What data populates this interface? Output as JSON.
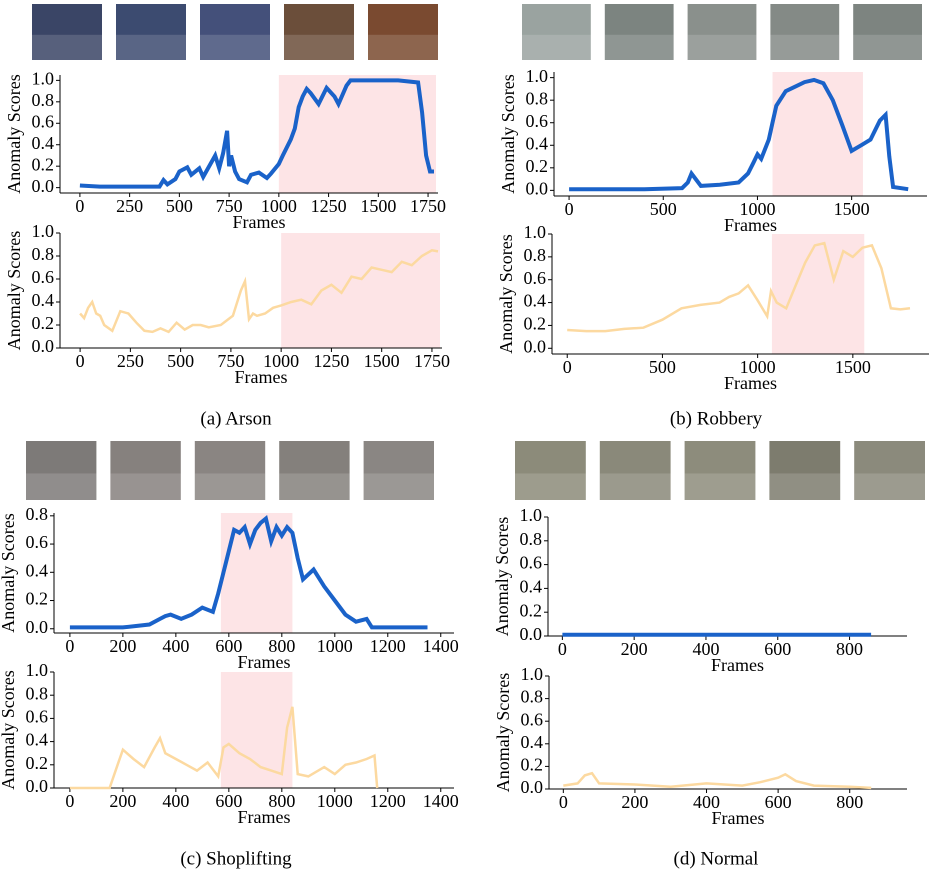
{
  "captions": [
    "(a) Arson",
    "(b) Robbery",
    "(c) Shoplifting",
    "(d) Normal"
  ],
  "chart_data": [
    {
      "type": "line",
      "xlabel": "Frames",
      "ylabel": "Anomaly Scores",
      "color": "#1a62c9",
      "line_width": 4,
      "x": [
        0,
        100,
        200,
        300,
        400,
        420,
        440,
        480,
        500,
        540,
        560,
        600,
        620,
        680,
        700,
        720,
        740,
        750,
        760,
        780,
        800,
        840,
        860,
        900,
        940,
        960,
        1000,
        1020,
        1060,
        1080,
        1100,
        1120,
        1140,
        1160,
        1200,
        1240,
        1280,
        1300,
        1340,
        1360,
        1400,
        1500,
        1600,
        1700,
        1720,
        1740,
        1760,
        1780
      ],
      "values": [
        0.02,
        0.01,
        0.01,
        0.01,
        0.01,
        0.07,
        0.03,
        0.08,
        0.15,
        0.19,
        0.12,
        0.18,
        0.1,
        0.3,
        0.18,
        0.32,
        0.53,
        0.2,
        0.3,
        0.15,
        0.08,
        0.05,
        0.12,
        0.14,
        0.09,
        0.13,
        0.22,
        0.3,
        0.45,
        0.55,
        0.75,
        0.85,
        0.92,
        0.88,
        0.78,
        0.93,
        0.85,
        0.78,
        0.95,
        1.0,
        1.0,
        1.0,
        1.0,
        0.98,
        0.7,
        0.3,
        0.15,
        0.15
      ],
      "highlight": [
        1000,
        1790
      ],
      "highlight_color": "#fde4e6",
      "xlim": [
        -100,
        1800
      ],
      "ylim": [
        -0.05,
        1.05
      ],
      "xticks": [
        0,
        250,
        500,
        750,
        1000,
        1250,
        1500,
        1750
      ],
      "yticks": [
        {
          "value": 0,
          "label": "0.0"
        },
        0.2,
        0.4,
        0.6,
        0.8,
        {
          "value": 1,
          "label": "1.0"
        }
      ]
    },
    {
      "type": "line",
      "xlabel": "Frames",
      "ylabel": "Anomaly Scores",
      "color": "#fcd9a0",
      "line_width": 2.5,
      "x": [
        0,
        20,
        40,
        60,
        80,
        100,
        120,
        160,
        200,
        240,
        280,
        320,
        360,
        400,
        440,
        480,
        520,
        560,
        600,
        640,
        700,
        760,
        800,
        820,
        840,
        860,
        880,
        920,
        960,
        1000,
        1050,
        1100,
        1150,
        1200,
        1250,
        1300,
        1350,
        1400,
        1450,
        1500,
        1550,
        1600,
        1650,
        1700,
        1750,
        1780
      ],
      "values": [
        0.3,
        0.26,
        0.35,
        0.4,
        0.3,
        0.28,
        0.2,
        0.15,
        0.32,
        0.3,
        0.22,
        0.15,
        0.14,
        0.17,
        0.14,
        0.22,
        0.16,
        0.2,
        0.2,
        0.18,
        0.2,
        0.28,
        0.5,
        0.58,
        0.25,
        0.3,
        0.28,
        0.3,
        0.35,
        0.37,
        0.4,
        0.42,
        0.38,
        0.5,
        0.55,
        0.48,
        0.62,
        0.6,
        0.7,
        0.68,
        0.66,
        0.75,
        0.72,
        0.8,
        0.85,
        0.84
      ],
      "highlight": [
        1000,
        1790
      ],
      "highlight_color": "#fde4e6",
      "xlim": [
        -100,
        1800
      ],
      "ylim": [
        0,
        1
      ],
      "xticks": [
        0,
        250,
        500,
        750,
        1000,
        1250,
        1500,
        1750
      ],
      "yticks": [
        {
          "value": 0,
          "label": "0.0"
        },
        0.2,
        0.4,
        0.6,
        0.8,
        {
          "value": 1,
          "label": "1.0"
        }
      ]
    },
    {
      "type": "line",
      "xlabel": "Frames",
      "ylabel": "Anomaly Scores",
      "color": "#1a62c9",
      "line_width": 4,
      "x": [
        0,
        200,
        400,
        600,
        630,
        650,
        700,
        800,
        900,
        950,
        980,
        1000,
        1020,
        1060,
        1080,
        1100,
        1150,
        1200,
        1250,
        1300,
        1350,
        1400,
        1450,
        1500,
        1550,
        1600,
        1650,
        1680,
        1700,
        1720,
        1800
      ],
      "values": [
        0.01,
        0.01,
        0.01,
        0.02,
        0.07,
        0.15,
        0.04,
        0.05,
        0.07,
        0.15,
        0.25,
        0.32,
        0.28,
        0.45,
        0.6,
        0.75,
        0.88,
        0.92,
        0.96,
        0.98,
        0.95,
        0.8,
        0.58,
        0.35,
        0.4,
        0.45,
        0.62,
        0.67,
        0.3,
        0.03,
        0.01
      ],
      "highlight": [
        1080,
        1560
      ],
      "highlight_color": "#fde4e6",
      "xlim": [
        -80,
        1900
      ],
      "ylim": [
        -0.05,
        1.05
      ],
      "xticks": [
        0,
        500,
        1000,
        1500
      ],
      "yticks": [
        {
          "value": 0,
          "label": "0.0"
        },
        0.2,
        0.4,
        0.6,
        0.8,
        {
          "value": 1,
          "label": "1.0"
        }
      ]
    },
    {
      "type": "line",
      "xlabel": "Frames",
      "ylabel": "Anomaly Scores",
      "color": "#fcd9a0",
      "line_width": 2.5,
      "x": [
        0,
        100,
        200,
        300,
        400,
        500,
        600,
        700,
        800,
        850,
        900,
        950,
        1000,
        1050,
        1070,
        1100,
        1150,
        1200,
        1250,
        1300,
        1350,
        1400,
        1450,
        1500,
        1550,
        1600,
        1650,
        1700,
        1750,
        1800
      ],
      "values": [
        0.16,
        0.15,
        0.15,
        0.17,
        0.18,
        0.25,
        0.35,
        0.38,
        0.4,
        0.45,
        0.48,
        0.55,
        0.42,
        0.28,
        0.5,
        0.4,
        0.35,
        0.55,
        0.75,
        0.9,
        0.92,
        0.6,
        0.85,
        0.8,
        0.88,
        0.9,
        0.7,
        0.35,
        0.34,
        0.35
      ],
      "highlight": [
        1075,
        1560
      ],
      "highlight_color": "#fde4e6",
      "xlim": [
        -80,
        1900
      ],
      "ylim": [
        -0.05,
        1
      ],
      "xticks": [
        0,
        500,
        1000,
        1500
      ],
      "yticks": [
        {
          "value": 0,
          "label": "0.0"
        },
        0.2,
        0.4,
        0.6,
        0.8,
        {
          "value": 1,
          "label": "1.0"
        }
      ]
    },
    {
      "type": "line",
      "xlabel": "Frames",
      "ylabel": "Anomaly Scores",
      "color": "#1a62c9",
      "line_width": 4,
      "x": [
        0,
        200,
        300,
        340,
        360,
        380,
        420,
        460,
        500,
        540,
        560,
        580,
        600,
        620,
        640,
        660,
        680,
        700,
        720,
        740,
        760,
        780,
        800,
        820,
        840,
        860,
        880,
        920,
        960,
        1000,
        1040,
        1080,
        1120,
        1140,
        1200,
        1350
      ],
      "values": [
        0.01,
        0.01,
        0.03,
        0.07,
        0.09,
        0.1,
        0.07,
        0.1,
        0.15,
        0.12,
        0.25,
        0.4,
        0.55,
        0.7,
        0.68,
        0.72,
        0.6,
        0.7,
        0.75,
        0.78,
        0.62,
        0.72,
        0.66,
        0.72,
        0.68,
        0.5,
        0.35,
        0.42,
        0.3,
        0.2,
        0.1,
        0.05,
        0.07,
        0.01,
        0.01,
        0.01
      ],
      "highlight": [
        570,
        840
      ],
      "highlight_color": "#fde4e6",
      "xlim": [
        -60,
        1450
      ],
      "ylim": [
        -0.03,
        0.82
      ],
      "xticks": [
        0,
        200,
        400,
        600,
        800,
        1000,
        1200,
        1400
      ],
      "yticks": [
        {
          "value": 0,
          "label": "0.0"
        },
        0.2,
        0.4,
        0.6,
        0.8
      ]
    },
    {
      "type": "line",
      "xlabel": "Frames",
      "ylabel": "Anomaly Scores",
      "color": "#fcd9a0",
      "line_width": 2.5,
      "x": [
        0,
        150,
        180,
        200,
        240,
        280,
        320,
        340,
        360,
        400,
        440,
        480,
        520,
        560,
        580,
        600,
        640,
        680,
        720,
        760,
        800,
        820,
        840,
        860,
        900,
        960,
        1000,
        1040,
        1080,
        1120,
        1150,
        1160
      ],
      "values": [
        0,
        0,
        0.2,
        0.33,
        0.25,
        0.18,
        0.35,
        0.43,
        0.3,
        0.25,
        0.2,
        0.15,
        0.22,
        0.1,
        0.35,
        0.38,
        0.3,
        0.25,
        0.18,
        0.15,
        0.12,
        0.52,
        0.7,
        0.12,
        0.1,
        0.18,
        0.12,
        0.2,
        0.22,
        0.25,
        0.28,
        0
      ],
      "highlight": [
        570,
        840
      ],
      "highlight_color": "#fde4e6",
      "xlim": [
        -60,
        1450
      ],
      "ylim": [
        0,
        1
      ],
      "xticks": [
        0,
        200,
        400,
        600,
        800,
        1000,
        1200,
        1400
      ],
      "yticks": [
        {
          "value": 0,
          "label": "0.0"
        },
        0.2,
        0.4,
        0.6,
        0.8,
        {
          "value": 1,
          "label": "1.0"
        }
      ]
    },
    {
      "type": "line",
      "xlabel": "Frames",
      "ylabel": "Anomaly Scores",
      "color": "#1a62c9",
      "line_width": 4,
      "x": [
        0,
        200,
        400,
        600,
        860
      ],
      "values": [
        0.01,
        0.01,
        0.01,
        0.01,
        0.01
      ],
      "xlim": [
        -40,
        960
      ],
      "ylim": [
        0,
        1
      ],
      "xticks": [
        0,
        200,
        400,
        600,
        800
      ],
      "yticks": [
        {
          "value": 0,
          "label": "0.0"
        },
        0.2,
        0.4,
        0.6,
        0.8,
        {
          "value": 1,
          "label": "1.0"
        }
      ]
    },
    {
      "type": "line",
      "xlabel": "Frames",
      "ylabel": "Anomaly Scores",
      "color": "#fcd9a0",
      "line_width": 2.5,
      "x": [
        0,
        40,
        60,
        80,
        100,
        200,
        300,
        400,
        500,
        550,
        600,
        620,
        650,
        700,
        800,
        860
      ],
      "values": [
        0.03,
        0.05,
        0.12,
        0.14,
        0.05,
        0.04,
        0.02,
        0.05,
        0.03,
        0.06,
        0.1,
        0.13,
        0.07,
        0.03,
        0.02,
        0.01
      ],
      "xlim": [
        -40,
        960
      ],
      "ylim": [
        0,
        1
      ],
      "xticks": [
        0,
        200,
        400,
        600,
        800
      ],
      "yticks": [
        {
          "value": 0,
          "label": "0.0"
        },
        0.2,
        0.4,
        0.6,
        0.8,
        {
          "value": 1,
          "label": "1.0"
        }
      ]
    }
  ]
}
